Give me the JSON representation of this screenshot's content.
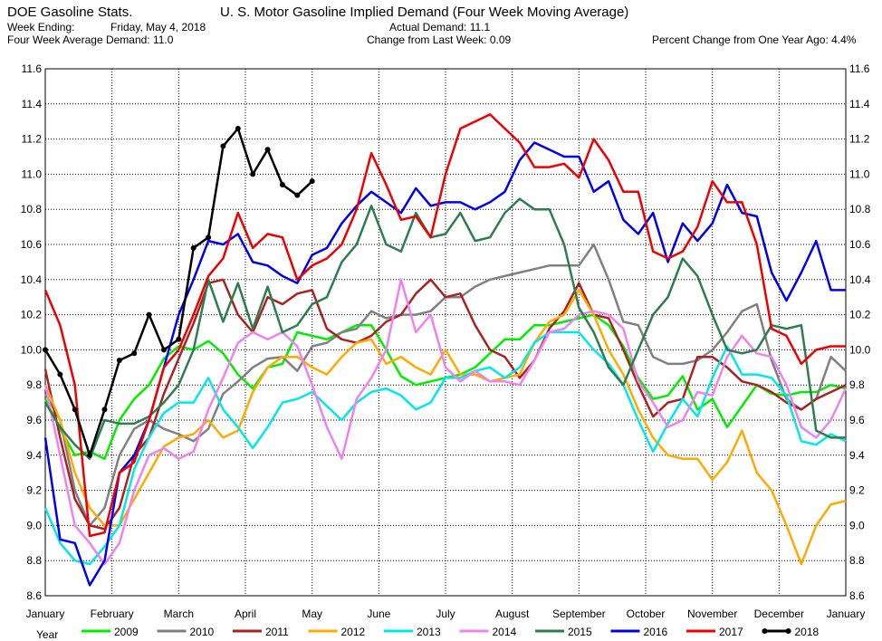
{
  "header": {
    "left_title": "DOE Gasoline Stats.",
    "week_ending_label": "Week Ending:",
    "week_ending_value": "Friday, May 4, 2018",
    "four_week_avg": "Four Week Average Demand: 11.0",
    "main_title": "U. S. Motor Gasoline Implied Demand (Four Week Moving Average)",
    "actual_demand": "Actual Demand: 11.1",
    "change_last_week": "Change from Last Week: 0.09",
    "pct_change": "Percent Change from One Year Ago:  4.4%"
  },
  "legend": {
    "title": "Year"
  },
  "chart_data": {
    "type": "line",
    "ylim": [
      8.6,
      11.6
    ],
    "y_ticks": [
      "8.6",
      "8.8",
      "9.0",
      "9.2",
      "9.4",
      "9.6",
      "9.8",
      "10.0",
      "10.2",
      "10.4",
      "10.6",
      "10.8",
      "11.0",
      "11.2",
      "11.4",
      "11.6"
    ],
    "x_ticks": [
      "January",
      "February",
      "March",
      "April",
      "May",
      "June",
      "July",
      "August",
      "September",
      "October",
      "November",
      "December",
      "January"
    ],
    "grid": true,
    "legend_position": "bottom",
    "series": [
      {
        "name": "2009",
        "color": "#00ee00",
        "marker": false,
        "values": [
          9.72,
          9.55,
          9.4,
          9.42,
          9.38,
          9.6,
          9.72,
          9.8,
          9.95,
          10.02,
          10.0,
          10.05,
          9.98,
          9.86,
          9.78,
          9.9,
          9.92,
          10.1,
          10.08,
          10.06,
          10.1,
          10.14,
          10.14,
          10.0,
          9.85,
          9.8,
          9.82,
          9.84,
          9.86,
          9.9,
          9.98,
          10.06,
          10.06,
          10.14,
          10.14,
          10.16,
          10.18,
          10.2,
          10.14,
          10.02,
          9.84,
          9.72,
          9.74,
          9.85,
          9.66,
          9.72,
          9.56,
          9.68,
          9.8,
          9.75,
          9.74,
          9.76,
          9.76,
          9.8,
          9.78
        ]
      },
      {
        "name": "2010",
        "color": "#808080",
        "marker": false,
        "values": [
          9.75,
          9.6,
          9.2,
          9.0,
          9.1,
          9.4,
          9.55,
          9.6,
          9.55,
          9.52,
          9.48,
          9.55,
          9.75,
          9.82,
          9.9,
          9.95,
          9.96,
          9.88,
          10.02,
          10.04,
          10.1,
          10.12,
          10.22,
          10.18,
          10.2,
          10.2,
          10.22,
          10.3,
          10.3,
          10.36,
          10.4,
          10.42,
          10.44,
          10.46,
          10.48,
          10.48,
          10.48,
          10.6,
          10.4,
          10.16,
          10.14,
          9.96,
          9.92,
          9.92,
          9.94,
          10.0,
          10.1,
          10.22,
          10.26,
          9.94,
          9.72,
          9.66,
          9.72,
          9.96,
          9.88
        ]
      },
      {
        "name": "2011",
        "color": "#aa2222",
        "marker": false,
        "values": [
          9.89,
          9.5,
          9.15,
          9.0,
          8.98,
          9.1,
          9.4,
          9.5,
          9.75,
          9.95,
          10.15,
          10.38,
          10.4,
          10.2,
          10.1,
          10.3,
          10.26,
          10.32,
          10.34,
          10.12,
          10.06,
          10.04,
          10.08,
          10.16,
          10.2,
          10.32,
          10.4,
          10.3,
          10.32,
          10.14,
          10.0,
          9.96,
          9.84,
          9.94,
          10.12,
          10.22,
          10.38,
          10.2,
          10.18,
          10.0,
          9.8,
          9.62,
          9.7,
          9.72,
          9.96,
          9.96,
          9.9,
          9.82,
          9.8,
          9.76,
          9.7,
          9.66,
          9.72,
          9.76,
          9.8
        ]
      },
      {
        "name": "2012",
        "color": "#ffaa00",
        "marker": false,
        "values": [
          9.8,
          9.6,
          9.3,
          9.1,
          9.0,
          9.0,
          9.15,
          9.3,
          9.45,
          9.5,
          9.52,
          9.6,
          9.5,
          9.54,
          9.76,
          9.9,
          9.96,
          9.96,
          9.9,
          9.86,
          9.96,
          10.04,
          10.06,
          9.92,
          9.96,
          9.9,
          9.86,
          10.0,
          9.86,
          9.86,
          9.82,
          9.84,
          9.86,
          10.04,
          10.16,
          10.2,
          10.34,
          10.2,
          10.0,
          9.86,
          9.66,
          9.5,
          9.4,
          9.38,
          9.38,
          9.26,
          9.36,
          9.54,
          9.3,
          9.2,
          9.0,
          8.78,
          9.0,
          9.12,
          9.14
        ]
      },
      {
        "name": "2013",
        "color": "#00e8e8",
        "marker": false,
        "values": [
          9.1,
          8.9,
          8.8,
          8.78,
          8.88,
          9.0,
          9.32,
          9.5,
          9.64,
          9.7,
          9.7,
          9.84,
          9.66,
          9.56,
          9.44,
          9.56,
          9.7,
          9.72,
          9.76,
          9.68,
          9.6,
          9.7,
          9.76,
          9.78,
          9.74,
          9.66,
          9.7,
          9.84,
          9.84,
          9.88,
          9.9,
          9.84,
          9.9,
          10.04,
          10.1,
          10.1,
          10.1,
          10.0,
          9.92,
          9.8,
          9.6,
          9.42,
          9.58,
          9.72,
          9.62,
          9.84,
          10.02,
          9.86,
          9.86,
          9.84,
          9.74,
          9.48,
          9.46,
          9.52,
          9.48
        ]
      },
      {
        "name": "2014",
        "color": "#ee82ee",
        "marker": false,
        "values": [
          9.8,
          9.4,
          9.0,
          8.9,
          8.78,
          8.9,
          9.2,
          9.4,
          9.44,
          9.38,
          9.42,
          9.66,
          9.84,
          10.04,
          10.1,
          10.06,
          10.1,
          10.02,
          9.8,
          9.56,
          9.38,
          9.72,
          9.84,
          10.0,
          10.4,
          10.1,
          10.2,
          9.9,
          9.82,
          9.88,
          9.82,
          9.82,
          9.8,
          9.94,
          10.1,
          10.12,
          10.2,
          10.22,
          10.2,
          10.12,
          9.82,
          9.7,
          9.56,
          9.6,
          9.76,
          9.74,
          9.96,
          10.08,
          9.98,
          9.96,
          9.8,
          9.56,
          9.5,
          9.6,
          9.78
        ]
      },
      {
        "name": "2015",
        "color": "#2e7d4f",
        "marker": false,
        "values": [
          9.7,
          9.56,
          9.46,
          9.38,
          9.6,
          9.58,
          9.58,
          9.62,
          9.7,
          9.8,
          10.0,
          10.4,
          10.16,
          10.38,
          10.12,
          10.36,
          10.1,
          10.14,
          10.26,
          10.3,
          10.5,
          10.6,
          10.82,
          10.6,
          10.56,
          10.78,
          10.64,
          10.66,
          10.78,
          10.62,
          10.64,
          10.78,
          10.86,
          10.8,
          10.8,
          10.6,
          10.24,
          10.1,
          9.9,
          9.8,
          10.0,
          10.2,
          10.3,
          10.52,
          10.42,
          10.2,
          10.0,
          9.98,
          10.0,
          10.14,
          10.12,
          10.14,
          9.54,
          9.5,
          9.5
        ]
      },
      {
        "name": "2016",
        "color": "#0000ee",
        "marker": false,
        "values": [
          9.5,
          8.92,
          8.9,
          8.66,
          8.8,
          9.3,
          9.4,
          9.6,
          9.9,
          10.2,
          10.4,
          10.62,
          10.6,
          10.66,
          10.5,
          10.48,
          10.42,
          10.38,
          10.54,
          10.58,
          10.72,
          10.82,
          10.9,
          10.84,
          10.78,
          10.92,
          10.82,
          10.84,
          10.84,
          10.8,
          10.84,
          10.9,
          11.08,
          11.18,
          11.14,
          11.1,
          11.1,
          10.9,
          10.96,
          10.74,
          10.66,
          10.78,
          10.5,
          10.72,
          10.62,
          10.72,
          10.94,
          10.78,
          10.76,
          10.44,
          10.28,
          10.44,
          10.62,
          10.34,
          10.34
        ]
      },
      {
        "name": "2017",
        "color": "#ee0000",
        "marker": false,
        "values": [
          10.34,
          10.14,
          9.8,
          8.94,
          8.96,
          9.3,
          9.36,
          9.6,
          9.9,
          10.0,
          10.2,
          10.42,
          10.52,
          10.78,
          10.58,
          10.66,
          10.64,
          10.4,
          10.48,
          10.52,
          10.6,
          10.8,
          11.12,
          10.94,
          10.74,
          10.76,
          10.64,
          11.0,
          11.26,
          11.3,
          11.34,
          11.26,
          11.18,
          11.04,
          11.04,
          11.06,
          10.98,
          11.2,
          11.08,
          10.9,
          10.9,
          10.56,
          10.52,
          10.56,
          10.7,
          10.96,
          10.84,
          10.84,
          10.6,
          10.12,
          10.08,
          9.92,
          10.0,
          10.02,
          10.02
        ]
      },
      {
        "name": "2018",
        "color": "#000000",
        "marker": true,
        "values": [
          10.0,
          9.86,
          9.66,
          9.4,
          9.66,
          9.94,
          9.98,
          10.2,
          10.0,
          10.06,
          10.58,
          10.64,
          11.16,
          11.26,
          11.0,
          11.14,
          10.94,
          10.88,
          10.96
        ]
      }
    ]
  }
}
